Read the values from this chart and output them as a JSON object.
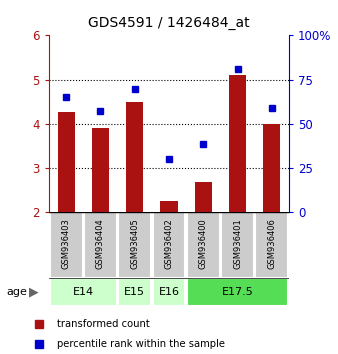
{
  "title": "GDS4591 / 1426484_at",
  "samples": [
    "GSM936403",
    "GSM936404",
    "GSM936405",
    "GSM936402",
    "GSM936400",
    "GSM936401",
    "GSM936406"
  ],
  "red_values": [
    4.28,
    3.9,
    4.5,
    2.25,
    2.68,
    5.1,
    4.0
  ],
  "blue_values": [
    4.6,
    4.3,
    4.78,
    3.2,
    3.55,
    5.25,
    4.35
  ],
  "ylim_left": [
    2,
    6
  ],
  "ylim_right": [
    0,
    100
  ],
  "yticks_left": [
    2,
    3,
    4,
    5,
    6
  ],
  "yticks_right": [
    0,
    25,
    50,
    75,
    100
  ],
  "ytick_labels_right": [
    "0",
    "25",
    "50",
    "75",
    "100%"
  ],
  "bar_color": "#aa1111",
  "dot_color": "#0000cc",
  "group_positions": {
    "E14": [
      0,
      1
    ],
    "E15": [
      2
    ],
    "E16": [
      3
    ],
    "E17.5": [
      4,
      5,
      6
    ]
  },
  "group_colors": {
    "E14": "#ccffcc",
    "E15": "#ccffcc",
    "E16": "#ccffcc",
    "E17.5": "#55dd55"
  },
  "group_order": [
    "E14",
    "E15",
    "E16",
    "E17.5"
  ],
  "legend_red_label": "transformed count",
  "legend_blue_label": "percentile rank within the sample",
  "age_label": "age",
  "background_color": "#ffffff",
  "sample_box_color": "#cccccc",
  "dotted_lines": [
    3,
    4,
    5
  ]
}
